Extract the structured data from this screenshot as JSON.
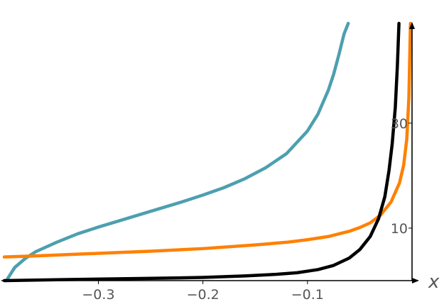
{
  "chart_data": {
    "type": "line",
    "title": "",
    "xlabel": "x",
    "ylabel": "",
    "xlim": [
      -0.39,
      0.0
    ],
    "ylim": [
      0,
      49
    ],
    "grid": false,
    "legend": "none",
    "x_ticks": [
      {
        "value": -0.3,
        "label": "−0.3"
      },
      {
        "value": -0.2,
        "label": "−0.2"
      },
      {
        "value": -0.1,
        "label": "−0.1"
      }
    ],
    "y_ticks": [
      {
        "value": 10,
        "label": "10"
      },
      {
        "value": 30,
        "label": "30"
      }
    ],
    "series": [
      {
        "color": "#4d9fb0",
        "x": [
          -0.388,
          -0.38,
          -0.37,
          -0.36,
          -0.34,
          -0.32,
          -0.3,
          -0.28,
          -0.25,
          -0.22,
          -0.2,
          -0.18,
          -0.16,
          -0.14,
          -0.12,
          -0.1,
          -0.09,
          -0.08,
          -0.075,
          -0.07,
          -0.065,
          -0.061
        ],
        "y": [
          0,
          2.5,
          4.2,
          5.5,
          7.3,
          8.9,
          10.2,
          11.4,
          13.2,
          15.0,
          16.3,
          17.7,
          19.4,
          21.5,
          24.2,
          28.5,
          31.7,
          36.3,
          39.3,
          43.0,
          47.0,
          49
        ]
      },
      {
        "color": "#ff8000",
        "x": [
          -0.39,
          -0.36,
          -0.3,
          -0.25,
          -0.2,
          -0.15,
          -0.12,
          -0.1,
          -0.08,
          -0.06,
          -0.05,
          -0.04,
          -0.03,
          -0.02,
          -0.012,
          -0.008,
          -0.005,
          -0.003,
          -0.0015
        ],
        "y": [
          4.5,
          4.7,
          5.2,
          5.6,
          6.1,
          6.8,
          7.3,
          7.8,
          8.4,
          9.4,
          10.1,
          11.0,
          12.5,
          15.0,
          18.6,
          22.0,
          27.0,
          35.0,
          49
        ]
      },
      {
        "color": "#000000",
        "x": [
          -0.39,
          -0.33,
          -0.26,
          -0.2,
          -0.16,
          -0.13,
          -0.11,
          -0.09,
          -0.075,
          -0.06,
          -0.05,
          -0.04,
          -0.032,
          -0.026,
          -0.022,
          -0.019,
          -0.016,
          -0.014,
          -0.0125
        ],
        "y": [
          0,
          0.2,
          0.4,
          0.6,
          0.9,
          1.2,
          1.5,
          2.1,
          2.9,
          4.3,
          5.9,
          8.4,
          11.8,
          16.0,
          21.0,
          26.0,
          33.0,
          41.0,
          49
        ]
      }
    ]
  }
}
